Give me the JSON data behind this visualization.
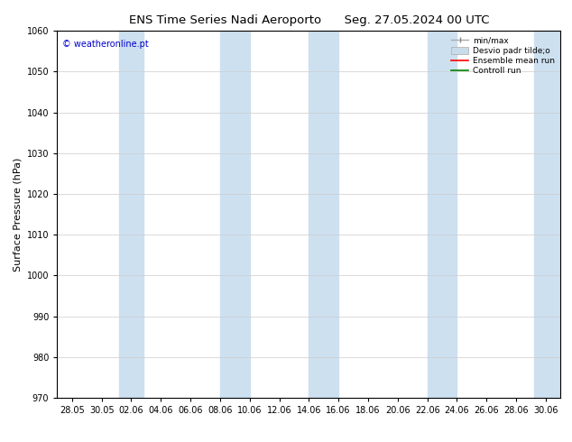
{
  "title_left": "ENS Time Series Nadi Aeroporto",
  "title_right": "Seg. 27.05.2024 00 UTC",
  "ylabel": "Surface Pressure (hPa)",
  "ylim": [
    970,
    1060
  ],
  "yticks": [
    970,
    980,
    990,
    1000,
    1010,
    1020,
    1030,
    1040,
    1050,
    1060
  ],
  "xtick_labels": [
    "28.05",
    "30.05",
    "02.06",
    "04.06",
    "06.06",
    "08.06",
    "10.06",
    "12.06",
    "14.06",
    "16.06",
    "18.06",
    "20.06",
    "22.06",
    "24.06",
    "26.06",
    "28.06",
    "30.06"
  ],
  "watermark": "© weatheronline.pt",
  "watermark_color": "#0000cc",
  "bg_color": "#ffffff",
  "plot_bg_color": "#ffffff",
  "shaded_color": "#cde0f0",
  "shaded_alpha": 1.0,
  "legend_labels": [
    "min/max",
    "Desvio padr tilde;o",
    "Ensemble mean run",
    "Controll run"
  ],
  "title_fontsize": 9.5,
  "tick_fontsize": 7,
  "label_fontsize": 8,
  "watermark_fontsize": 7
}
